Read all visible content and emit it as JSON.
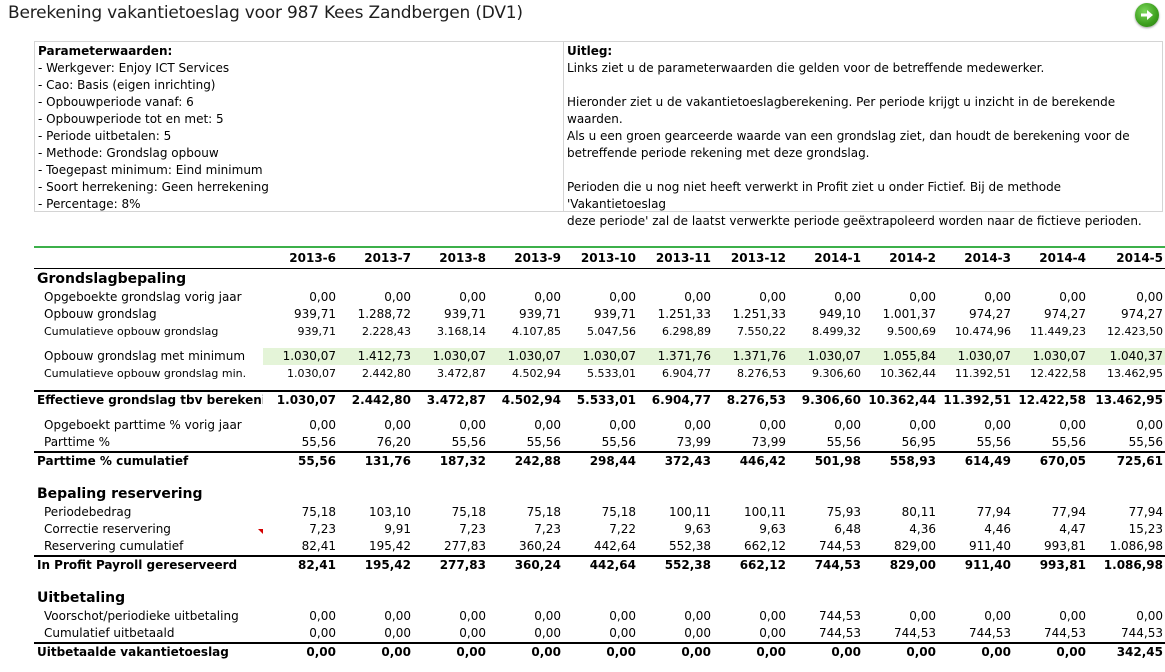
{
  "title": "Berekening vakantietoeslag voor 987 Kees Zandbergen (DV1)",
  "go_icon": "arrow-right-icon",
  "params": {
    "heading": "Parameterwaarden:",
    "lines": [
      "- Werkgever: Enjoy ICT Services",
      "- Cao: Basis (eigen inrichting)",
      "- Opbouwperiode vanaf: 6",
      "- Opbouwperiode tot en met: 5",
      "- Periode uitbetalen: 5",
      "- Methode: Grondslag opbouw",
      "- Toegepast minimum: Eind minimum",
      "- Soort herrekening: Geen herrekening",
      "- Percentage: 8%"
    ]
  },
  "uitleg": {
    "heading": "Uitleg:",
    "p1": "Links ziet u de parameterwaarden die gelden voor de betreffende medewerker.",
    "p2_l1": "Hieronder ziet u de vakantietoeslagberekening. Per periode krijgt u inzicht in de berekende waarden.",
    "p2_l2": "Als u een groen gearceerde waarde van een grondslag ziet, dan houdt de berekening voor de",
    "p2_l3": "betreffende periode rekening met deze grondslag.",
    "p3_l1": "Perioden die u nog niet heeft verwerkt in Profit ziet u onder Fictief. Bij de methode 'Vakantietoeslag",
    "p3_l2": "deze periode' zal de laatst verwerkte periode geëxtrapoleerd worden naar de fictieve perioden."
  },
  "periods": [
    "2013-6",
    "2013-7",
    "2013-8",
    "2013-9",
    "2013-10",
    "2013-11",
    "2013-12",
    "2014-1",
    "2014-2",
    "2014-3",
    "2014-4",
    "2014-5"
  ],
  "sections": {
    "grondslag": "Grondslagbepaling",
    "reservering": "Bepaling reservering",
    "uitbetaling": "Uitbetaling"
  },
  "rows": {
    "opgeboekt_grondslag": {
      "label": "Opgeboekte grondslag vorig jaar",
      "values": [
        "0,00",
        "0,00",
        "0,00",
        "0,00",
        "0,00",
        "0,00",
        "0,00",
        "0,00",
        "0,00",
        "0,00",
        "0,00",
        "0,00"
      ]
    },
    "opbouw_grondslag": {
      "label": "Opbouw grondslag",
      "values": [
        "939,71",
        "1.288,72",
        "939,71",
        "939,71",
        "939,71",
        "1.251,33",
        "1.251,33",
        "949,10",
        "1.001,37",
        "974,27",
        "974,27",
        "974,27"
      ]
    },
    "cum_opbouw_grondslag": {
      "label": "Cumulatieve opbouw grondslag",
      "values": [
        "939,71",
        "2.228,43",
        "3.168,14",
        "4.107,85",
        "5.047,56",
        "6.298,89",
        "7.550,22",
        "8.499,32",
        "9.500,69",
        "10.474,96",
        "11.449,23",
        "12.423,50"
      ]
    },
    "opbouw_min": {
      "label": "Opbouw grondslag met minimum",
      "values": [
        "1.030,07",
        "1.412,73",
        "1.030,07",
        "1.030,07",
        "1.030,07",
        "1.371,76",
        "1.371,76",
        "1.030,07",
        "1.055,84",
        "1.030,07",
        "1.030,07",
        "1.040,37"
      ]
    },
    "cum_opbouw_min": {
      "label": "Cumulatieve opbouw grondslag min.",
      "values": [
        "1.030,07",
        "2.442,80",
        "3.472,87",
        "4.502,94",
        "5.533,01",
        "6.904,77",
        "8.276,53",
        "9.306,60",
        "10.362,44",
        "11.392,51",
        "12.422,58",
        "13.462,95"
      ]
    },
    "effectieve": {
      "label": "Effectieve grondslag tbv berekening",
      "values": [
        "1.030,07",
        "2.442,80",
        "3.472,87",
        "4.502,94",
        "5.533,01",
        "6.904,77",
        "8.276,53",
        "9.306,60",
        "10.362,44",
        "11.392,51",
        "12.422,58",
        "13.462,95"
      ]
    },
    "opgeboekt_parttime": {
      "label": "Opgeboekt parttime % vorig jaar",
      "values": [
        "0,00",
        "0,00",
        "0,00",
        "0,00",
        "0,00",
        "0,00",
        "0,00",
        "0,00",
        "0,00",
        "0,00",
        "0,00",
        "0,00"
      ]
    },
    "parttime": {
      "label": "Parttime %",
      "values": [
        "55,56",
        "76,20",
        "55,56",
        "55,56",
        "55,56",
        "73,99",
        "73,99",
        "55,56",
        "56,95",
        "55,56",
        "55,56",
        "55,56"
      ]
    },
    "parttime_cum": {
      "label": "Parttime % cumulatief",
      "values": [
        "55,56",
        "131,76",
        "187,32",
        "242,88",
        "298,44",
        "372,43",
        "446,42",
        "501,98",
        "558,93",
        "614,49",
        "670,05",
        "725,61"
      ]
    },
    "periodebedrag": {
      "label": "Periodebedrag",
      "values": [
        "75,18",
        "103,10",
        "75,18",
        "75,18",
        "75,18",
        "100,11",
        "100,11",
        "75,93",
        "80,11",
        "77,94",
        "77,94",
        "77,94"
      ]
    },
    "correctie": {
      "label": "Correctie reservering",
      "values": [
        "7,23",
        "9,91",
        "7,23",
        "7,23",
        "7,22",
        "9,63",
        "9,63",
        "6,48",
        "4,36",
        "4,46",
        "4,47",
        "15,23"
      ]
    },
    "reservering_cum": {
      "label": "Reservering cumulatief",
      "values": [
        "82,41",
        "195,42",
        "277,83",
        "360,24",
        "442,64",
        "552,38",
        "662,12",
        "744,53",
        "829,00",
        "911,40",
        "993,81",
        "1.086,98"
      ]
    },
    "in_profit": {
      "label": "In Profit Payroll gereserveerd",
      "values": [
        "82,41",
        "195,42",
        "277,83",
        "360,24",
        "442,64",
        "552,38",
        "662,12",
        "744,53",
        "829,00",
        "911,40",
        "993,81",
        "1.086,98"
      ]
    },
    "voorschot": {
      "label": "Voorschot/periodieke uitbetaling",
      "values": [
        "0,00",
        "0,00",
        "0,00",
        "0,00",
        "0,00",
        "0,00",
        "0,00",
        "744,53",
        "0,00",
        "0,00",
        "0,00",
        "0,00"
      ]
    },
    "cum_uitbetaald": {
      "label": "Cumulatief uitbetaald",
      "values": [
        "0,00",
        "0,00",
        "0,00",
        "0,00",
        "0,00",
        "0,00",
        "0,00",
        "744,53",
        "744,53",
        "744,53",
        "744,53",
        "744,53"
      ]
    },
    "uitbetaald": {
      "label": "Uitbetaalde vakantietoeslag",
      "values": [
        "0,00",
        "0,00",
        "0,00",
        "0,00",
        "0,00",
        "0,00",
        "0,00",
        "0,00",
        "0,00",
        "0,00",
        "0,00",
        "342,45"
      ]
    }
  }
}
